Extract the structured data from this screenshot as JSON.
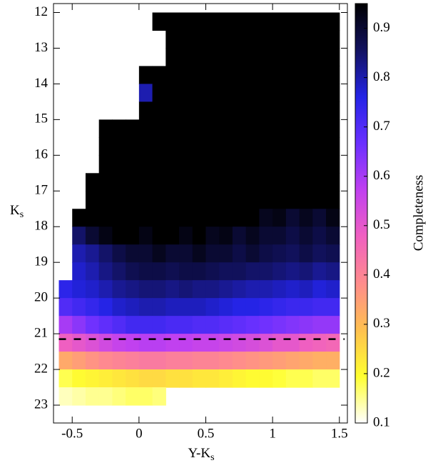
{
  "chart_data": {
    "type": "heatmap",
    "xlabel": {
      "main": "Y-K",
      "sub": "s"
    },
    "ylabel": {
      "main": "K",
      "sub": "s"
    },
    "colorbar_label": "Completeness",
    "x": [
      -0.55,
      -0.45,
      -0.35,
      -0.25,
      -0.15,
      -0.05,
      0.05,
      0.15,
      0.25,
      0.35,
      0.45,
      0.55,
      0.65,
      0.75,
      0.85,
      0.95,
      1.05,
      1.15,
      1.25,
      1.35,
      1.45
    ],
    "y": [
      12.25,
      12.75,
      13.25,
      13.75,
      14.25,
      14.75,
      15.25,
      15.75,
      16.25,
      16.75,
      17.25,
      17.75,
      18.25,
      18.75,
      19.25,
      19.75,
      20.25,
      20.75,
      21.25,
      21.75,
      22.25,
      22.75
    ],
    "values": [
      [
        null,
        null,
        null,
        null,
        null,
        null,
        null,
        0.95,
        0.95,
        0.95,
        0.95,
        0.95,
        0.95,
        0.95,
        0.95,
        0.95,
        0.95,
        0.95,
        0.95,
        0.95,
        0.95
      ],
      [
        null,
        null,
        null,
        null,
        null,
        null,
        null,
        null,
        0.95,
        0.95,
        0.95,
        0.95,
        0.95,
        0.95,
        0.95,
        0.95,
        0.95,
        0.95,
        0.95,
        0.95,
        0.95
      ],
      [
        null,
        null,
        null,
        null,
        null,
        null,
        null,
        null,
        0.95,
        0.95,
        0.95,
        0.95,
        0.95,
        0.95,
        0.95,
        0.95,
        0.95,
        0.95,
        0.95,
        0.95,
        0.95
      ],
      [
        null,
        null,
        null,
        null,
        null,
        null,
        0.95,
        0.95,
        0.95,
        0.95,
        0.95,
        0.95,
        0.95,
        0.95,
        0.95,
        0.95,
        0.95,
        0.95,
        0.95,
        0.95,
        0.95
      ],
      [
        null,
        null,
        null,
        null,
        null,
        null,
        0.8,
        0.95,
        0.95,
        0.95,
        0.95,
        0.95,
        0.95,
        0.95,
        0.95,
        0.95,
        0.95,
        0.95,
        0.95,
        0.95,
        0.95
      ],
      [
        null,
        null,
        null,
        null,
        null,
        null,
        0.95,
        0.95,
        0.95,
        0.95,
        0.95,
        0.95,
        0.95,
        0.95,
        0.95,
        0.95,
        0.95,
        0.95,
        0.95,
        0.95,
        0.95
      ],
      [
        null,
        null,
        null,
        0.95,
        0.95,
        0.95,
        0.95,
        0.95,
        0.95,
        0.95,
        0.95,
        0.95,
        0.95,
        0.95,
        0.95,
        0.95,
        0.95,
        0.95,
        0.95,
        0.95,
        0.95
      ],
      [
        null,
        null,
        null,
        0.95,
        0.95,
        0.95,
        0.95,
        0.95,
        0.95,
        0.95,
        0.95,
        0.95,
        0.95,
        0.95,
        0.95,
        0.95,
        0.95,
        0.95,
        0.95,
        0.95,
        0.95
      ],
      [
        null,
        null,
        null,
        0.95,
        0.95,
        0.95,
        0.95,
        0.95,
        0.95,
        0.95,
        0.95,
        0.95,
        0.95,
        0.95,
        0.95,
        0.95,
        0.95,
        0.95,
        0.95,
        0.95,
        0.95
      ],
      [
        null,
        null,
        0.95,
        0.95,
        0.95,
        0.95,
        0.95,
        0.95,
        0.95,
        0.95,
        0.95,
        0.95,
        0.95,
        0.95,
        0.95,
        0.95,
        0.95,
        0.95,
        0.95,
        0.95,
        0.95
      ],
      [
        null,
        null,
        0.95,
        0.95,
        0.95,
        0.95,
        0.95,
        0.95,
        0.95,
        0.95,
        0.95,
        0.95,
        0.95,
        0.95,
        0.95,
        0.95,
        0.95,
        0.95,
        0.95,
        0.95,
        0.95
      ],
      [
        null,
        0.95,
        0.95,
        0.95,
        0.95,
        0.95,
        0.95,
        0.95,
        0.95,
        0.95,
        0.95,
        0.95,
        0.95,
        0.95,
        0.95,
        0.92,
        0.93,
        0.9,
        0.92,
        0.9,
        0.93
      ],
      [
        null,
        0.85,
        0.9,
        0.93,
        0.95,
        0.95,
        0.93,
        0.95,
        0.95,
        0.93,
        0.95,
        0.92,
        0.93,
        0.9,
        0.92,
        0.9,
        0.9,
        0.88,
        0.9,
        0.88,
        0.9
      ],
      [
        null,
        0.8,
        0.82,
        0.85,
        0.88,
        0.9,
        0.9,
        0.92,
        0.9,
        0.9,
        0.92,
        0.9,
        0.9,
        0.88,
        0.9,
        0.88,
        0.87,
        0.86,
        0.88,
        0.86,
        0.87
      ],
      [
        null,
        0.78,
        0.8,
        0.83,
        0.85,
        0.87,
        0.88,
        0.88,
        0.87,
        0.88,
        0.88,
        0.87,
        0.86,
        0.86,
        0.85,
        0.85,
        0.84,
        0.83,
        0.84,
        0.82,
        0.83
      ],
      [
        0.75,
        0.77,
        0.78,
        0.8,
        0.82,
        0.83,
        0.84,
        0.84,
        0.83,
        0.84,
        0.83,
        0.83,
        0.82,
        0.81,
        0.8,
        0.8,
        0.79,
        0.78,
        0.79,
        0.77,
        0.78
      ],
      [
        0.7,
        0.72,
        0.74,
        0.76,
        0.78,
        0.79,
        0.8,
        0.8,
        0.79,
        0.79,
        0.79,
        0.78,
        0.77,
        0.76,
        0.76,
        0.75,
        0.74,
        0.73,
        0.73,
        0.72,
        0.72
      ],
      [
        0.6,
        0.63,
        0.66,
        0.68,
        0.7,
        0.72,
        0.72,
        0.72,
        0.71,
        0.71,
        0.7,
        0.7,
        0.69,
        0.68,
        0.67,
        0.66,
        0.65,
        0.64,
        0.63,
        0.62,
        0.62
      ],
      [
        0.48,
        0.5,
        0.52,
        0.54,
        0.56,
        0.57,
        0.58,
        0.58,
        0.57,
        0.57,
        0.56,
        0.56,
        0.55,
        0.54,
        0.53,
        0.52,
        0.5,
        0.5,
        0.48,
        0.47,
        0.46
      ],
      [
        0.33,
        0.35,
        0.37,
        0.39,
        0.4,
        0.41,
        0.42,
        0.42,
        0.41,
        0.41,
        0.4,
        0.4,
        0.39,
        0.38,
        0.37,
        0.36,
        0.35,
        0.34,
        0.33,
        0.32,
        0.32
      ],
      [
        0.18,
        0.2,
        0.21,
        0.22,
        0.23,
        0.24,
        0.25,
        0.25,
        0.24,
        0.24,
        0.23,
        0.23,
        0.22,
        0.21,
        0.2,
        0.2,
        0.19,
        0.18,
        0.18,
        0.17,
        0.17
      ],
      [
        0.13,
        0.14,
        0.15,
        0.15,
        0.16,
        0.17,
        0.17,
        0.16,
        null,
        null,
        null,
        null,
        null,
        null,
        null,
        null,
        null,
        null,
        null,
        null,
        null
      ]
    ],
    "xlim": [
      -0.64,
      1.56
    ],
    "xticks": [
      -0.5,
      0,
      0.5,
      1,
      1.5
    ],
    "ylim": [
      23.5,
      11.75
    ],
    "yticks": [
      12,
      13,
      14,
      15,
      16,
      17,
      18,
      19,
      20,
      21,
      22,
      23
    ],
    "clim": [
      0.1,
      0.95
    ],
    "cticks": [
      0.1,
      0.2,
      0.3,
      0.4,
      0.5,
      0.6,
      0.7,
      0.8,
      0.9
    ],
    "colormap": [
      "#ffffff",
      "#ffff30",
      "#ffc050",
      "#ff8c8c",
      "#f060c0",
      "#c040f0",
      "#6a30ff",
      "#2424e6",
      "#121260",
      "#000000"
    ],
    "hline": 21.15
  }
}
